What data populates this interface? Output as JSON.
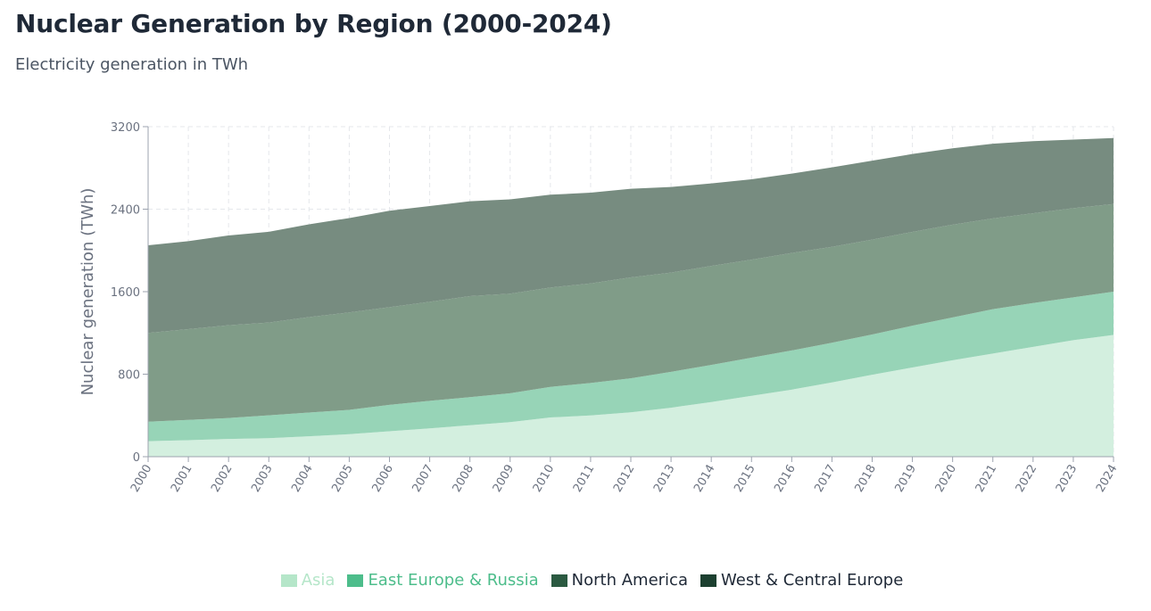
{
  "title": "Nuclear Generation by Region (2000-2024)",
  "subtitle": "Electricity generation in TWh",
  "chart_data": {
    "type": "area",
    "stacked": true,
    "title": "Nuclear Generation by Region (2000-2024)",
    "subtitle": "Electricity generation in TWh",
    "xlabel": "",
    "ylabel": "Nuclear generation (TWh)",
    "ylim": [
      0,
      3200
    ],
    "yticks": [
      0,
      800,
      1600,
      2400,
      3200
    ],
    "grid": true,
    "legend_position": "bottom",
    "categories": [
      "2000",
      "2001",
      "2002",
      "2003",
      "2004",
      "2005",
      "2006",
      "2007",
      "2008",
      "2009",
      "2010",
      "2011",
      "2012",
      "2013",
      "2014",
      "2015",
      "2016",
      "2017",
      "2018",
      "2019",
      "2020",
      "2021",
      "2022",
      "2023",
      "2024"
    ],
    "series": [
      {
        "name": "Asia",
        "color": "#b5e6c9",
        "legend_text_color": "#b5e6c9",
        "fill_color": "#d3efdf",
        "values": [
          150,
          160,
          172,
          180,
          198,
          218,
          246,
          275,
          305,
          335,
          380,
          400,
          430,
          475,
          530,
          590,
          650,
          720,
          795,
          865,
          935,
          1000,
          1065,
          1130,
          1180
        ]
      },
      {
        "name": "East Europe & Russia",
        "color": "#4dbd8b",
        "legend_text_color": "#4dbd8b",
        "fill_color": "#97d4b7",
        "values": [
          190,
          197,
          203,
          221,
          230,
          236,
          257,
          267,
          272,
          280,
          297,
          315,
          330,
          348,
          360,
          370,
          380,
          385,
          390,
          405,
          415,
          430,
          425,
          415,
          420
        ]
      },
      {
        "name": "North America",
        "color": "#2b5a41",
        "legend_text_color": "#1f2937",
        "fill_color": "#809c88",
        "values": [
          860,
          880,
          900,
          900,
          925,
          945,
          947,
          960,
          980,
          965,
          963,
          965,
          978,
          962,
          960,
          950,
          945,
          930,
          920,
          910,
          900,
          880,
          870,
          865,
          850
        ]
      },
      {
        "name": "West & Central Europe",
        "color": "#1c4030",
        "legend_text_color": "#1f2937",
        "fill_color": "#778c80",
        "values": [
          850,
          853,
          870,
          880,
          900,
          915,
          935,
          928,
          920,
          915,
          900,
          880,
          860,
          830,
          800,
          780,
          770,
          770,
          765,
          755,
          740,
          725,
          700,
          665,
          640
        ]
      }
    ]
  }
}
